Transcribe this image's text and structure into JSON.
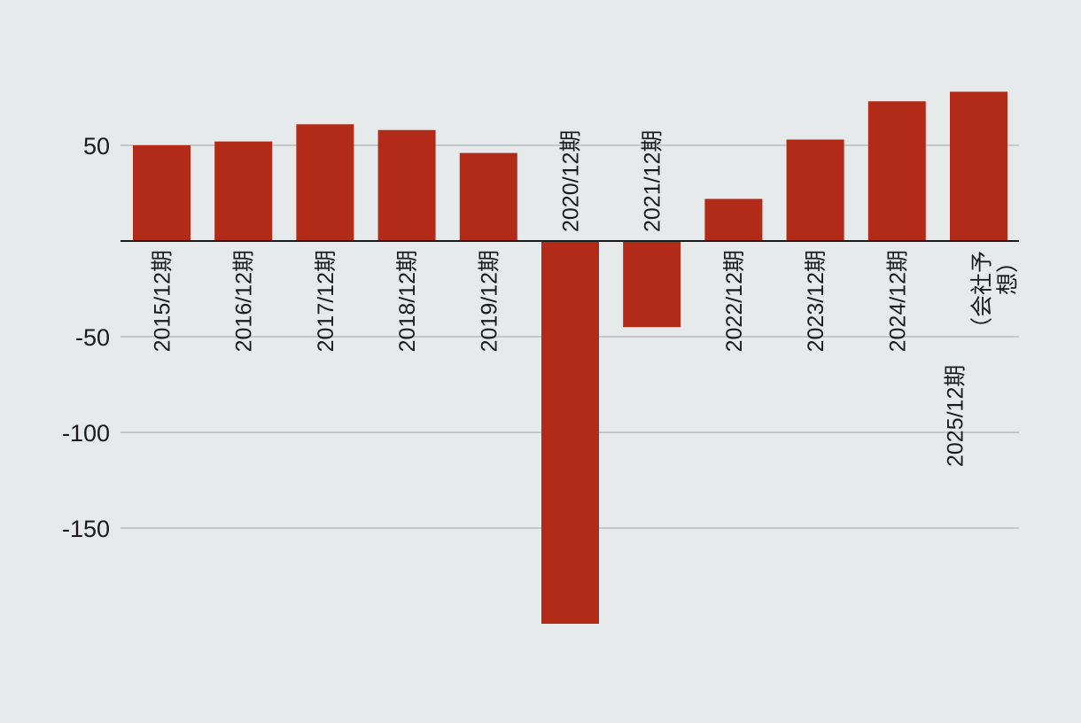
{
  "chart_data": {
    "type": "bar",
    "title": "",
    "xlabel": "",
    "ylabel": "",
    "categories": [
      "2015/12期",
      "2016/12期",
      "2017/12期",
      "2018/12期",
      "2019/12期",
      "2020/12期",
      "2021/12期",
      "2022/12期",
      "2023/12期",
      "2024/12期",
      "2025/12期（会社予想）"
    ],
    "category_lines": [
      [
        "2015/12期"
      ],
      [
        "2016/12期"
      ],
      [
        "2017/12期"
      ],
      [
        "2018/12期"
      ],
      [
        "2019/12期"
      ],
      [
        "2020/12期"
      ],
      [
        "2021/12期"
      ],
      [
        "2022/12期"
      ],
      [
        "2023/12期"
      ],
      [
        "2024/12期"
      ],
      [
        "2025/12期",
        "（会社予",
        "想）"
      ]
    ],
    "values": [
      50,
      52,
      61,
      58,
      46,
      -200,
      -45,
      22,
      53,
      73,
      78
    ],
    "ylim": [
      -200,
      78
    ],
    "yticks": [
      50,
      -50,
      -100,
      -150
    ],
    "grid": true,
    "legend": "none",
    "colors": {
      "bar": "#b22a18",
      "grid": "#b9bcbd",
      "axis": "#1a1a1a",
      "background": "#e6eaeb"
    }
  }
}
